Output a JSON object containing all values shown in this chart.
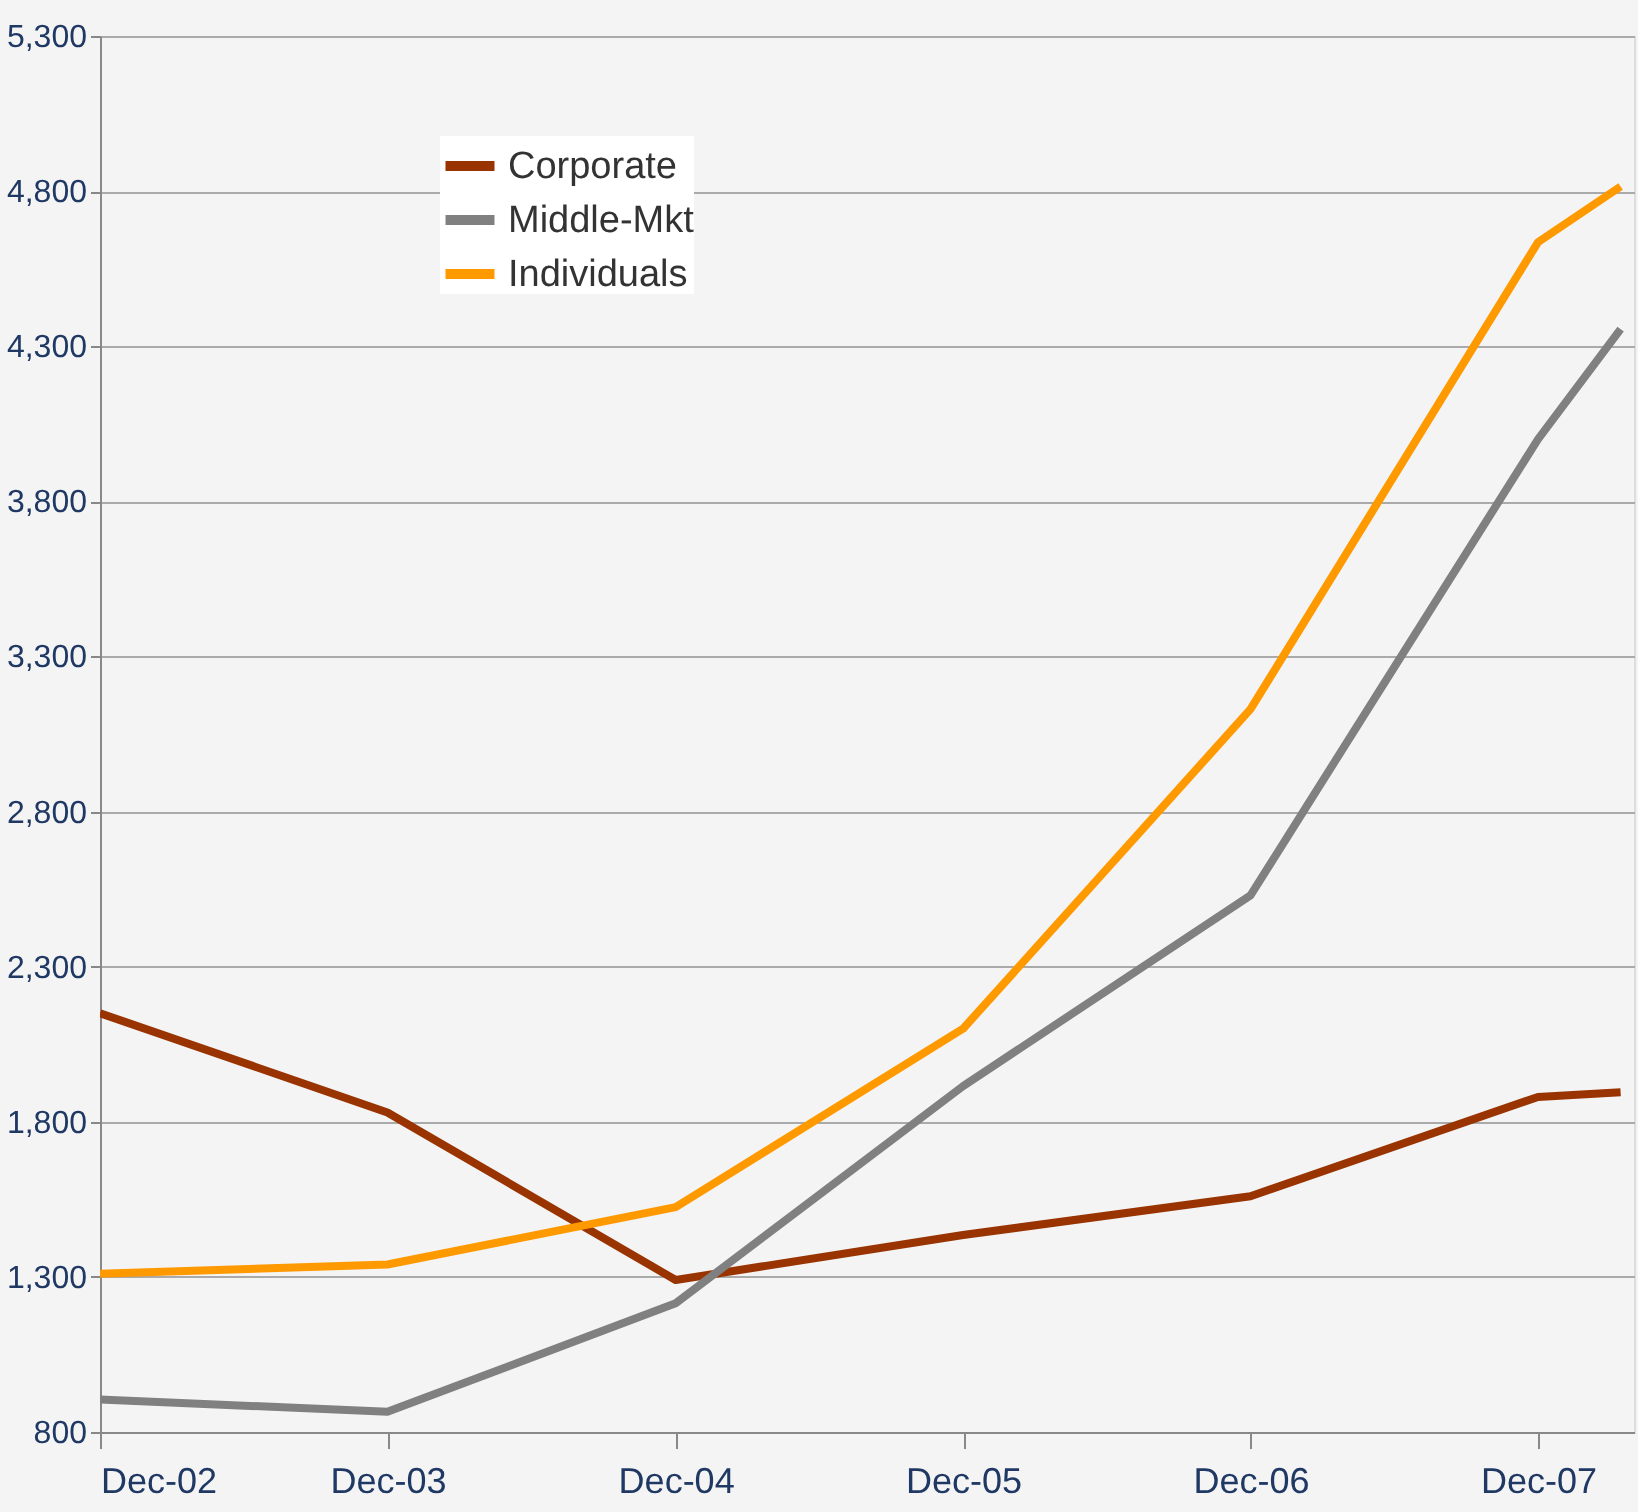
{
  "chart_data": {
    "type": "line",
    "x": [
      "2002-12",
      "2003-12",
      "2004-12",
      "2005-12",
      "2006-12",
      "2007-12",
      "2008-03-15"
    ],
    "xlim": [
      "2002-12",
      "2008-04"
    ],
    "xticks": [
      {
        "value": "2002-12",
        "label": "Dec-02"
      },
      {
        "value": "2003-12",
        "label": "Dec-03"
      },
      {
        "value": "2004-12",
        "label": "Dec-04"
      },
      {
        "value": "2005-12",
        "label": "Dec-05"
      },
      {
        "value": "2006-12",
        "label": "Dec-06"
      },
      {
        "value": "2007-12",
        "label": "Dec-07"
      }
    ],
    "ylim": [
      800,
      5300
    ],
    "yticks": [
      800,
      {
        "value": 1300,
        "label": "1,300"
      },
      {
        "value": 1800,
        "label": "1,800"
      },
      {
        "value": 2300,
        "label": "2,300"
      },
      {
        "value": 2800,
        "label": "2,800"
      },
      {
        "value": 3300,
        "label": "3,300"
      },
      {
        "value": 3800,
        "label": "3,800"
      },
      {
        "value": 4300,
        "label": "4,300"
      },
      {
        "value": 4800,
        "label": "4,800"
      },
      {
        "value": 5300,
        "label": "5,300"
      }
    ],
    "series": [
      {
        "name": "Corporate",
        "color": "#993300",
        "values": [
          2150,
          1830,
          1290,
          1435,
          1560,
          1880,
          1895
        ]
      },
      {
        "name": "Middle-Mkt",
        "color": "#808080",
        "values": [
          905,
          865,
          1215,
          1915,
          2530,
          4000,
          4355
        ]
      },
      {
        "name": "Individuals",
        "color": "#ff9900",
        "values": [
          1310,
          1340,
          1525,
          2100,
          3130,
          4635,
          4815
        ]
      }
    ],
    "grid": "y",
    "legend": "top left",
    "marker": "none",
    "line_style": "solid"
  }
}
